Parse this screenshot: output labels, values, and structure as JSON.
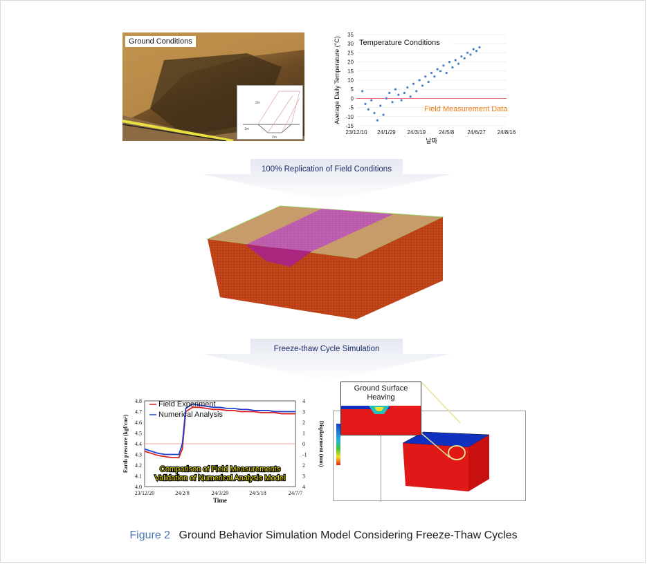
{
  "figure": {
    "number": "Figure 2",
    "title": "Ground Behavior Simulation Model Considering Freeze-Thaw Cycles"
  },
  "top_left": {
    "label": "Ground Conditions",
    "inset_dims": [
      "3m",
      "1m",
      "2m"
    ]
  },
  "step1": {
    "label": "100% Replication of Field Conditions"
  },
  "step2": {
    "label": "Freeze-thaw Cycle Simulation"
  },
  "heave_callout": {
    "label_line1": "Ground Surface",
    "label_line2": "Heaving"
  },
  "colors": {
    "accent": "#4a77b4",
    "soil": "#c45a1a",
    "mesh_top": "#c79b6a",
    "trench": "#c060b0",
    "annotation_orange": "#f07c14",
    "highlight_yellow": "#f2e400"
  },
  "chart_data": [
    {
      "type": "scatter",
      "title": "Temperature Conditions",
      "ylabel": "Average Daily Temperature (°C)",
      "xlabel": "날짜",
      "annotation": "Field Measurement Data",
      "x_ticks": [
        "23/12/10",
        "24/1/29",
        "24/3/19",
        "24/5/8",
        "24/6/27",
        "24/8/16"
      ],
      "y_ticks": [
        -15,
        -10,
        -5,
        0,
        5,
        10,
        15,
        20,
        25,
        30,
        35
      ],
      "ylim": [
        -15,
        35
      ],
      "reference_line": 0,
      "series": [
        {
          "x": [
            10,
            15,
            20,
            25,
            30,
            35,
            40,
            45,
            50,
            55,
            60,
            65,
            70,
            75,
            80,
            85,
            90,
            95,
            100,
            105,
            110,
            115,
            120,
            125,
            130,
            135,
            140,
            145,
            150,
            155,
            160,
            165,
            170,
            175,
            180,
            185,
            190,
            195,
            200,
            205
          ],
          "y": [
            4,
            -3,
            -6,
            -1,
            -8,
            -12,
            -4,
            -9,
            0,
            3,
            -2,
            5,
            2,
            -1,
            3,
            6,
            1,
            8,
            4,
            10,
            7,
            12,
            9,
            14,
            12,
            16,
            15,
            18,
            14,
            20,
            17,
            21,
            19,
            23,
            22,
            25,
            24,
            27,
            26,
            28
          ]
        }
      ]
    },
    {
      "type": "line",
      "title": "",
      "ylabel": "Earth pressure (kgf/cm²)",
      "y2label": "Displacement (mm)",
      "xlabel": "Time",
      "x_ticks": [
        "23/12/20",
        "24/2/8",
        "24/3/29",
        "24/5/18",
        "24/7/7"
      ],
      "y_ticks": [
        "4.8",
        "4.7",
        "4.6",
        "4.5",
        "4.4",
        "4.3",
        "4.2",
        "4.1",
        "4.0"
      ],
      "y2_ticks": [
        "4",
        "3",
        "2",
        "1",
        "0",
        "-1",
        "2",
        "3",
        "4"
      ],
      "ylim": [
        4.0,
        4.8
      ],
      "legend": [
        "Field Experiment",
        "Numerical Analysis"
      ],
      "annotation_lines": [
        "Comparison of Field Measurements",
        "Validation of Numerical Analysis Model"
      ],
      "series": [
        {
          "name": "Field Experiment",
          "x": [
            0,
            10,
            20,
            30,
            40,
            50,
            55,
            60,
            70,
            80,
            90,
            100,
            110,
            120,
            130,
            140,
            150,
            160,
            170,
            180,
            190,
            200,
            210,
            220
          ],
          "y": [
            4.33,
            4.31,
            4.29,
            4.28,
            4.27,
            4.27,
            4.35,
            4.7,
            4.74,
            4.74,
            4.73,
            4.72,
            4.72,
            4.71,
            4.71,
            4.7,
            4.7,
            4.7,
            4.69,
            4.69,
            4.69,
            4.68,
            4.68,
            4.68
          ]
        },
        {
          "name": "Numerical Analysis",
          "x": [
            0,
            10,
            20,
            30,
            40,
            50,
            55,
            60,
            70,
            80,
            90,
            100,
            110,
            120,
            130,
            140,
            150,
            160,
            170,
            180,
            190,
            200,
            210,
            220
          ],
          "y": [
            4.35,
            4.33,
            4.31,
            4.3,
            4.3,
            4.3,
            4.4,
            4.73,
            4.77,
            4.76,
            4.75,
            4.74,
            4.74,
            4.73,
            4.73,
            4.72,
            4.72,
            4.71,
            4.71,
            4.71,
            4.7,
            4.7,
            4.7,
            4.7
          ]
        }
      ]
    }
  ]
}
